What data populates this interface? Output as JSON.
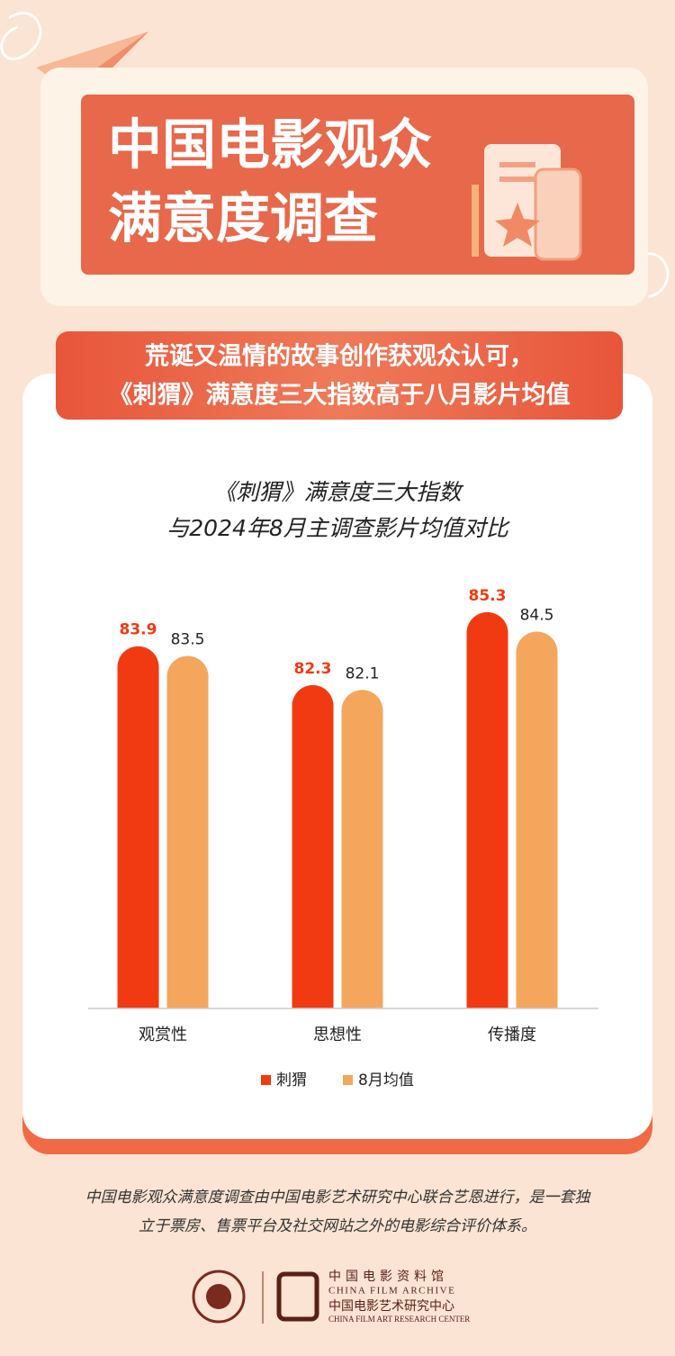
{
  "header": {
    "title_lines": [
      "中国电影观众",
      "满意度调查"
    ]
  },
  "banner": {
    "lines": [
      "荒诞又温情的故事创作获观众认可，",
      "《刺猬》满意度三大指数高于八月影片均值"
    ]
  },
  "chart_data": {
    "type": "bar",
    "title_lines": [
      "《刺猬》满意度三大指数",
      "与2024年8月主调查影片均值对比"
    ],
    "categories": [
      "观赏性",
      "思想性",
      "传播度"
    ],
    "series": [
      {
        "name": "刺猬",
        "color": "#f23a12",
        "values": [
          83.9,
          82.3,
          85.3
        ]
      },
      {
        "name": "8月均值",
        "color": "#f4a65c",
        "values": [
          83.5,
          82.1,
          84.5
        ]
      }
    ],
    "ylim": [
      69,
      87
    ],
    "legend": "bottom"
  },
  "footer": {
    "note_lines": [
      "中国电影观众满意度调查由中国电影艺术研究中心联合艺恩进行，是一套独",
      "立于票房、售票平台及社交网站之外的电影综合评价体系。"
    ],
    "org1_cn": "中国电影资料馆",
    "org1_en": "CHINA FILM ARCHIVE",
    "org2_cn": "中国电影艺术研究中心",
    "org2_en": "CHINA FILM ART RESEARCH CENTER"
  }
}
